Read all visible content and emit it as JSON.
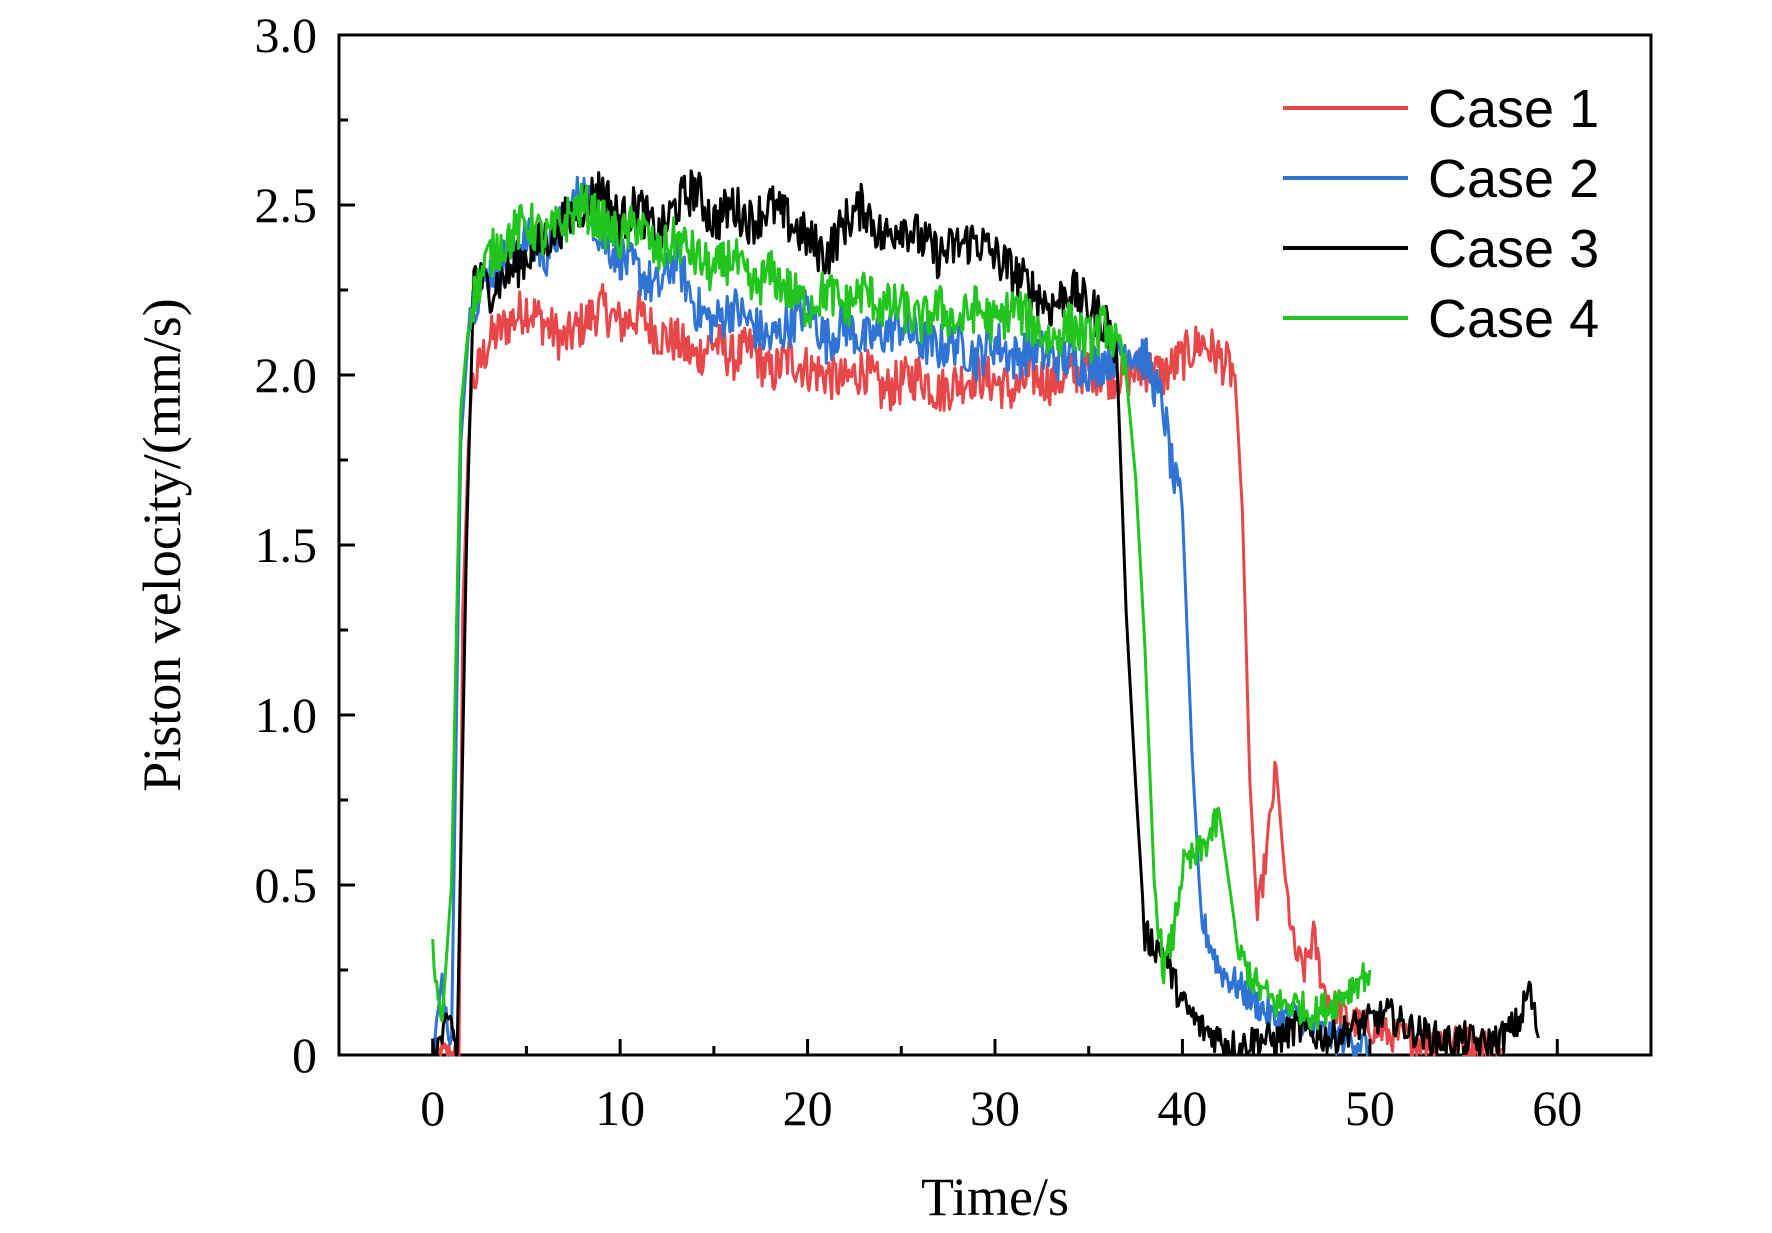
{
  "chart_data": {
    "type": "line",
    "title": "",
    "xlabel": "Time/s",
    "ylabel": "Piston velocity/(mm/s)",
    "xlim": [
      -5,
      65
    ],
    "ylim": [
      0,
      3.0
    ],
    "xticks": [
      0,
      10,
      20,
      30,
      40,
      50,
      60
    ],
    "xtick_labels": [
      "0",
      "10",
      "20",
      "30",
      "40",
      "50",
      "60"
    ],
    "yticks": [
      0,
      0.5,
      1.0,
      1.5,
      2.0,
      2.5,
      3.0
    ],
    "ytick_labels": [
      "0",
      "0.5",
      "1.0",
      "1.5",
      "2.0",
      "2.5",
      "3.0"
    ],
    "grid": false,
    "legend_position": "top-right",
    "series": [
      {
        "name": "Case 1",
        "color": "#e8474a",
        "x": [
          0,
          1,
          1.4,
          1.6,
          2,
          3,
          4,
          5,
          6,
          7,
          8,
          9,
          10,
          11,
          12,
          13,
          14,
          15,
          16,
          17,
          18,
          19,
          20,
          21,
          22,
          23,
          24,
          25,
          26,
          27,
          28,
          29,
          30,
          31,
          32,
          33,
          34,
          35,
          36,
          37,
          38,
          39,
          40,
          41,
          42,
          42.8,
          43.2,
          43.6,
          44,
          44.5,
          45,
          45.5,
          46,
          46.5,
          47,
          47.5,
          48,
          49,
          50,
          51,
          52,
          53,
          54,
          55,
          56,
          57
        ],
        "y": [
          0,
          0,
          0,
          1.3,
          1.95,
          2.1,
          2.15,
          2.2,
          2.15,
          2.1,
          2.15,
          2.2,
          2.15,
          2.18,
          2.12,
          2.1,
          2.05,
          2.1,
          2.05,
          2.08,
          2.0,
          2.05,
          2.02,
          2.0,
          1.98,
          2.02,
          1.95,
          1.98,
          2.0,
          1.95,
          1.98,
          2.0,
          1.98,
          1.95,
          2.0,
          1.98,
          2.0,
          2.02,
          2.0,
          2.0,
          2.02,
          2.0,
          2.05,
          2.1,
          2.05,
          2.0,
          1.6,
          0.8,
          0.4,
          0.6,
          0.85,
          0.5,
          0.3,
          0.25,
          0.35,
          0.2,
          0.15,
          0.1,
          0.08,
          0.06,
          0.05,
          0.04,
          0.05,
          0.04,
          0.03,
          0.02
        ]
      },
      {
        "name": "Case 2",
        "color": "#2f73d4",
        "x": [
          0,
          0.5,
          1,
          1.5,
          2,
          3,
          4,
          5,
          6,
          7,
          8,
          9,
          10,
          11,
          12,
          13,
          14,
          15,
          16,
          17,
          18,
          19,
          20,
          21,
          22,
          23,
          24,
          25,
          26,
          27,
          28,
          29,
          30,
          31,
          32,
          33,
          34,
          35,
          36,
          37,
          38,
          39,
          39.5,
          40,
          40.5,
          41,
          42,
          43,
          44,
          45,
          46,
          47,
          48,
          49,
          50
        ],
        "y": [
          0,
          0.2,
          0.05,
          1.8,
          2.2,
          2.3,
          2.35,
          2.4,
          2.35,
          2.45,
          2.55,
          2.4,
          2.35,
          2.3,
          2.25,
          2.35,
          2.2,
          2.15,
          2.2,
          2.15,
          2.1,
          2.15,
          2.2,
          2.1,
          2.15,
          2.1,
          2.12,
          2.15,
          2.1,
          2.08,
          2.1,
          2.05,
          2.1,
          2.05,
          2.08,
          2.05,
          2.05,
          2.02,
          2.05,
          2.08,
          2.05,
          1.9,
          1.7,
          1.6,
          0.9,
          0.4,
          0.25,
          0.2,
          0.15,
          0.1,
          0.12,
          0.08,
          0.05,
          0.05,
          0.02
        ]
      },
      {
        "name": "Case 3",
        "color": "#000000",
        "x": [
          0,
          1,
          1.3,
          1.8,
          2.2,
          3,
          4,
          5,
          6,
          7,
          8,
          9,
          10,
          11,
          12,
          13,
          14,
          15,
          16,
          17,
          18,
          19,
          20,
          21,
          22,
          23,
          24,
          25,
          26,
          27,
          28,
          29,
          30,
          31,
          32,
          33,
          34,
          35,
          36,
          36.5,
          37,
          37.5,
          38,
          39,
          40,
          41,
          42,
          43,
          44,
          45,
          46,
          47,
          48,
          49,
          50,
          51,
          52,
          53,
          54,
          55,
          56,
          57,
          58,
          58.5,
          59
        ],
        "y": [
          0,
          0.1,
          0,
          1.5,
          2.3,
          2.25,
          2.3,
          2.35,
          2.4,
          2.45,
          2.5,
          2.55,
          2.45,
          2.5,
          2.4,
          2.5,
          2.55,
          2.45,
          2.5,
          2.45,
          2.5,
          2.45,
          2.4,
          2.35,
          2.45,
          2.5,
          2.4,
          2.45,
          2.4,
          2.35,
          2.38,
          2.4,
          2.35,
          2.3,
          2.25,
          2.2,
          2.25,
          2.2,
          2.15,
          2.05,
          1.3,
          0.8,
          0.35,
          0.3,
          0.15,
          0.08,
          0.05,
          0.02,
          0.05,
          0.04,
          0.08,
          0.06,
          0.05,
          0.08,
          0.1,
          0.12,
          0.08,
          0.06,
          0.04,
          0.05,
          0.03,
          0.05,
          0.1,
          0.2,
          0.05
        ]
      },
      {
        "name": "Case 4",
        "color": "#22c41e",
        "x": [
          0,
          0.5,
          1,
          1.5,
          2,
          3,
          4,
          5,
          6,
          7,
          8,
          9,
          10,
          11,
          12,
          13,
          14,
          15,
          16,
          17,
          18,
          19,
          20,
          21,
          22,
          23,
          24,
          25,
          26,
          27,
          28,
          29,
          30,
          31,
          32,
          33,
          34,
          35,
          36,
          37,
          37.5,
          38,
          38.5,
          39,
          39.5,
          40,
          41,
          42,
          43,
          44,
          45,
          46,
          47,
          48,
          49,
          50
        ],
        "y": [
          0.3,
          0.1,
          0.5,
          1.9,
          2.2,
          2.35,
          2.4,
          2.45,
          2.4,
          2.45,
          2.5,
          2.45,
          2.4,
          2.45,
          2.35,
          2.4,
          2.35,
          2.3,
          2.35,
          2.25,
          2.3,
          2.25,
          2.2,
          2.25,
          2.2,
          2.25,
          2.2,
          2.2,
          2.15,
          2.2,
          2.15,
          2.2,
          2.15,
          2.2,
          2.15,
          2.1,
          2.15,
          2.1,
          2.15,
          2.0,
          1.7,
          1.2,
          0.5,
          0.25,
          0.35,
          0.55,
          0.6,
          0.7,
          0.3,
          0.2,
          0.15,
          0.15,
          0.12,
          0.15,
          0.2,
          0.25
        ]
      }
    ]
  }
}
